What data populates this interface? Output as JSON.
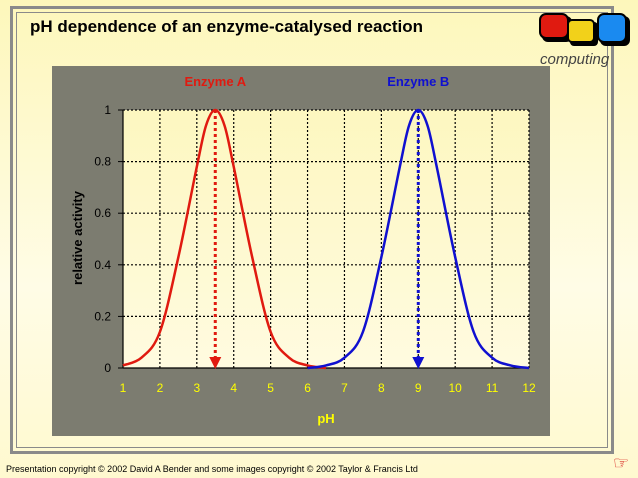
{
  "title": "pH dependence of an enzyme-catalysed reaction",
  "footer": "Presentation copyright © 2002 David A Bender and some images copyright © 2002 Taylor & Francis Ltd",
  "logo": {
    "text": "computing"
  },
  "next_icon": "pointing-hand-icon",
  "chart_data": {
    "type": "line",
    "xlabel": "pH",
    "ylabel": "relative activity",
    "xlim": [
      1,
      12
    ],
    "ylim": [
      0,
      1
    ],
    "xticks": [
      "1",
      "2",
      "3",
      "4",
      "5",
      "6",
      "7",
      "8",
      "9",
      "10",
      "11",
      "12"
    ],
    "yticks": [
      "0",
      "0.2",
      "0.4",
      "0.6",
      "0.8",
      "1"
    ],
    "grid": true,
    "series": [
      {
        "name": "Enzyme A",
        "color": "#e01a10",
        "optimum_ph": 3.5,
        "x": [
          1,
          1.5,
          2,
          2.5,
          3,
          3.25,
          3.5,
          3.75,
          4,
          4.5,
          5,
          5.5,
          6,
          6.5
        ],
        "y": [
          0.01,
          0.04,
          0.14,
          0.43,
          0.78,
          0.94,
          1.0,
          0.94,
          0.78,
          0.43,
          0.14,
          0.04,
          0.01,
          0.0
        ]
      },
      {
        "name": "Enzyme B",
        "color": "#1010d0",
        "optimum_ph": 9,
        "x": [
          6,
          6.5,
          7,
          7.5,
          8,
          8.5,
          8.75,
          9,
          9.25,
          9.5,
          10,
          10.5,
          11,
          11.5,
          12
        ],
        "y": [
          0.0,
          0.01,
          0.04,
          0.14,
          0.43,
          0.78,
          0.94,
          1.0,
          0.94,
          0.78,
          0.43,
          0.14,
          0.04,
          0.01,
          0.0
        ]
      }
    ]
  }
}
